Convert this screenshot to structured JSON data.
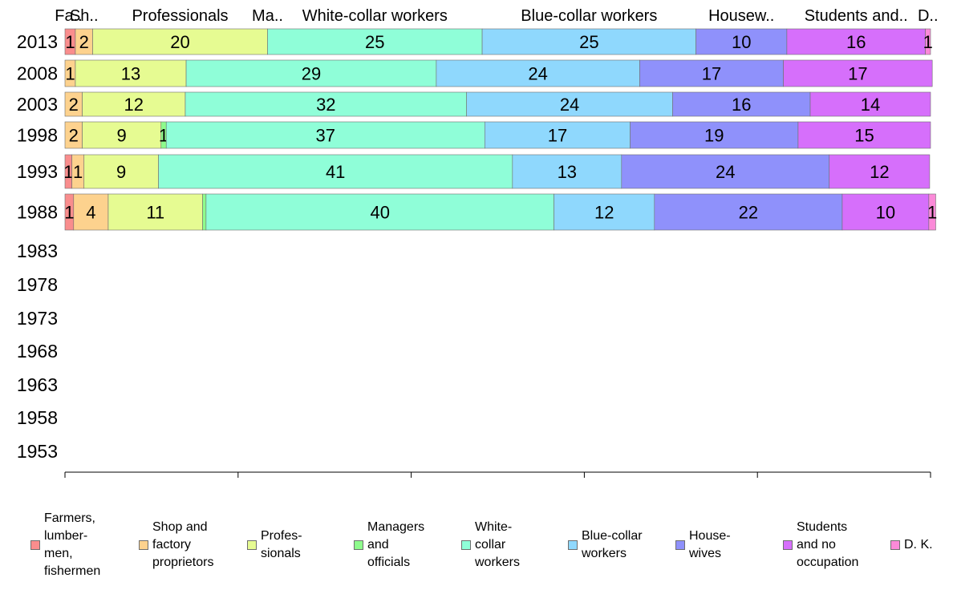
{
  "chart_data": {
    "type": "bar",
    "orientation": "horizontal",
    "stacked": true,
    "categories": [
      "2013",
      "2008",
      "2003",
      "1998",
      "1993",
      "1988",
      "1983",
      "1978",
      "1973",
      "1968",
      "1963",
      "1958",
      "1953"
    ],
    "series": [
      {
        "name": "Farmers,\nlumber-\nmen,\nfishermen",
        "values": [
          1.2,
          0,
          0,
          0,
          0.8,
          1,
          null,
          null,
          null,
          null,
          null,
          null,
          null
        ],
        "labels": [
          "1",
          "",
          "",
          "",
          "1",
          "1",
          "",
          "",
          "",
          "",
          "",
          "",
          ""
        ]
      },
      {
        "name": "Shop and\nfactory\nproprietors",
        "values": [
          2,
          1.2,
          2,
          2,
          1.4,
          4,
          null,
          null,
          null,
          null,
          null,
          null,
          null
        ],
        "labels": [
          "2",
          "1",
          "2",
          "2",
          "1",
          "4",
          "",
          "",
          "",
          "",
          "",
          "",
          ""
        ]
      },
      {
        "name": "Profes-\nsionals",
        "values": [
          20.2,
          12.8,
          11.9,
          9.1,
          8.6,
          10.9,
          null,
          null,
          null,
          null,
          null,
          null,
          null
        ],
        "labels": [
          "20",
          "13",
          "12",
          "9",
          "9",
          "11",
          "",
          "",
          "",
          "",
          "",
          "",
          ""
        ]
      },
      {
        "name": "Managers\nand\nofficials",
        "values": [
          0,
          0,
          0,
          0.6,
          0,
          0.4,
          null,
          null,
          null,
          null,
          null,
          null,
          null
        ],
        "labels": [
          "",
          "",
          "",
          "1",
          "",
          "",
          "",
          "",
          "",
          "",
          "",
          "",
          ""
        ]
      },
      {
        "name": "White-\ncollar\nworkers",
        "values": [
          24.8,
          28.9,
          32.5,
          36.8,
          40.9,
          40.2,
          null,
          null,
          null,
          null,
          null,
          null,
          null
        ],
        "labels": [
          "25",
          "29",
          "32",
          "37",
          "41",
          "40",
          "",
          "",
          "",
          "",
          "",
          "",
          ""
        ]
      },
      {
        "name": "Blue-collar\nworkers",
        "values": [
          24.7,
          23.5,
          23.8,
          16.8,
          12.6,
          11.6,
          null,
          null,
          null,
          null,
          null,
          null,
          null
        ],
        "labels": [
          "25",
          "24",
          "24",
          "17",
          "13",
          "12",
          "",
          "",
          "",
          "",
          "",
          "",
          ""
        ]
      },
      {
        "name": "House-\nwives",
        "values": [
          10.5,
          16.6,
          15.9,
          19.4,
          24,
          21.7,
          null,
          null,
          null,
          null,
          null,
          null,
          null
        ],
        "labels": [
          "10",
          "17",
          "16",
          "19",
          "24",
          "22",
          "",
          "",
          "",
          "",
          "",
          "",
          ""
        ]
      },
      {
        "name": "Students\nand no\noccupation",
        "values": [
          16,
          17.2,
          13.9,
          15.3,
          11.6,
          10,
          null,
          null,
          null,
          null,
          null,
          null,
          null
        ],
        "labels": [
          "16",
          "17",
          "14",
          "15",
          "12",
          "10",
          "",
          "",
          "",
          "",
          "",
          "",
          ""
        ]
      },
      {
        "name": "D. K.",
        "values": [
          0.6,
          0,
          0,
          0,
          0,
          0.8,
          null,
          null,
          null,
          null,
          null,
          null,
          null
        ],
        "labels": [
          "1",
          "",
          "",
          "",
          "",
          "1",
          "",
          "",
          "",
          "",
          "",
          "",
          ""
        ]
      }
    ],
    "column_headers": [
      "Fa..",
      "Sh..",
      "Professionals",
      "Ma..",
      "White-collar workers",
      "Blue-collar workers",
      "Housew..",
      "Students and..",
      "D.."
    ],
    "xlim": [
      0,
      100
    ],
    "xticks": [
      "0",
      "20",
      "40",
      "60",
      "80",
      "100"
    ],
    "xlabel": "",
    "ylabel": "",
    "title": "",
    "grid": false,
    "legend_position": "bottom",
    "colors": [
      "#f98d8d",
      "#fdd28e",
      "#e6fb92",
      "#8efb8c",
      "#8ffed8",
      "#8fd8fd",
      "#8f91fb",
      "#d66ffb",
      "#fb8ad8"
    ]
  }
}
